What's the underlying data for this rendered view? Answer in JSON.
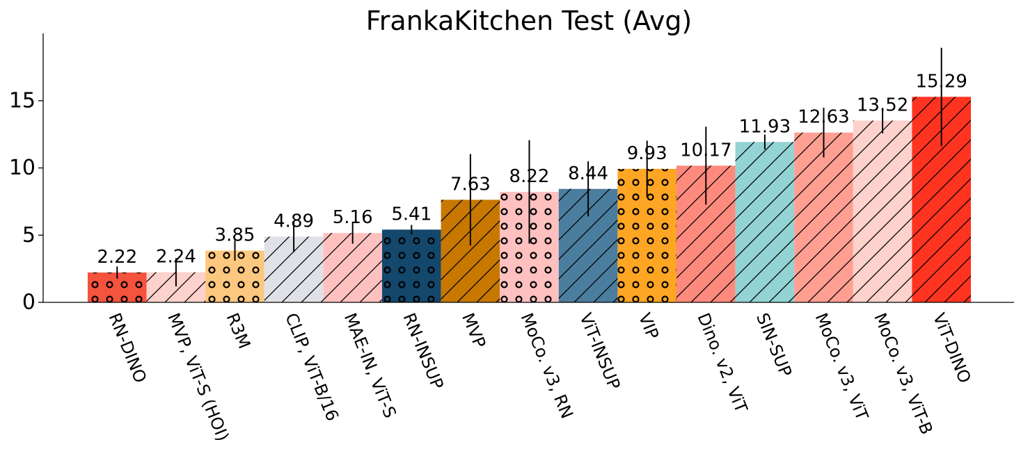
{
  "chart_data": {
    "type": "bar",
    "title": "FrankaKitchen Test (Avg)",
    "xlabel": "",
    "ylabel": "",
    "ylim": [
      0,
      20
    ],
    "yticks": [
      0,
      5,
      10,
      15
    ],
    "grid": false,
    "categories": [
      "RN-DINO",
      "MVP, ViT-S (HOI)",
      "R3M",
      "CLIP, ViT-B/16",
      "MAE-IN, ViT-S",
      "RN-INSUP",
      "MVP",
      "MoCo. v3, RN",
      "ViT-INSUP",
      "VIP",
      "Dino. v2, ViT",
      "SIN-SUP",
      "MoCo. v3, ViT",
      "MoCo. v3, ViT-B",
      "ViT-DINO"
    ],
    "values": [
      2.22,
      2.24,
      3.85,
      4.89,
      5.16,
      5.41,
      7.63,
      8.22,
      8.44,
      9.93,
      10.17,
      11.93,
      12.63,
      13.52,
      15.29
    ],
    "value_labels": [
      "2.22",
      "2.24",
      "3.85",
      "4.89",
      "5.16",
      "5.41",
      "7.63",
      "8.22",
      "8.44",
      "9.93",
      "10.17",
      "11.93",
      "12.63",
      "13.52",
      "15.29"
    ],
    "error": [
      0.45,
      1.05,
      0.75,
      1.15,
      0.8,
      0.35,
      3.4,
      3.85,
      2.05,
      2.1,
      2.9,
      0.55,
      1.85,
      0.95,
      3.65
    ],
    "colors": [
      "#f5533d",
      "#fdd1cc",
      "#fcc77e",
      "#dfe1e6",
      "#fec1c0",
      "#13476b",
      "#c87700",
      "#fec1bf",
      "#4b7d9e",
      "#fea623",
      "#fe8a7d",
      "#93d3d3",
      "#fe9f92",
      "#fdd1cc",
      "#fe3421"
    ],
    "patterns": [
      "circles",
      "hatch",
      "circles",
      "hatch",
      "hatch",
      "circles",
      "hatch",
      "circles",
      "hatch",
      "circles",
      "hatch",
      "hatch",
      "hatch",
      "hatch",
      "hatch"
    ]
  }
}
